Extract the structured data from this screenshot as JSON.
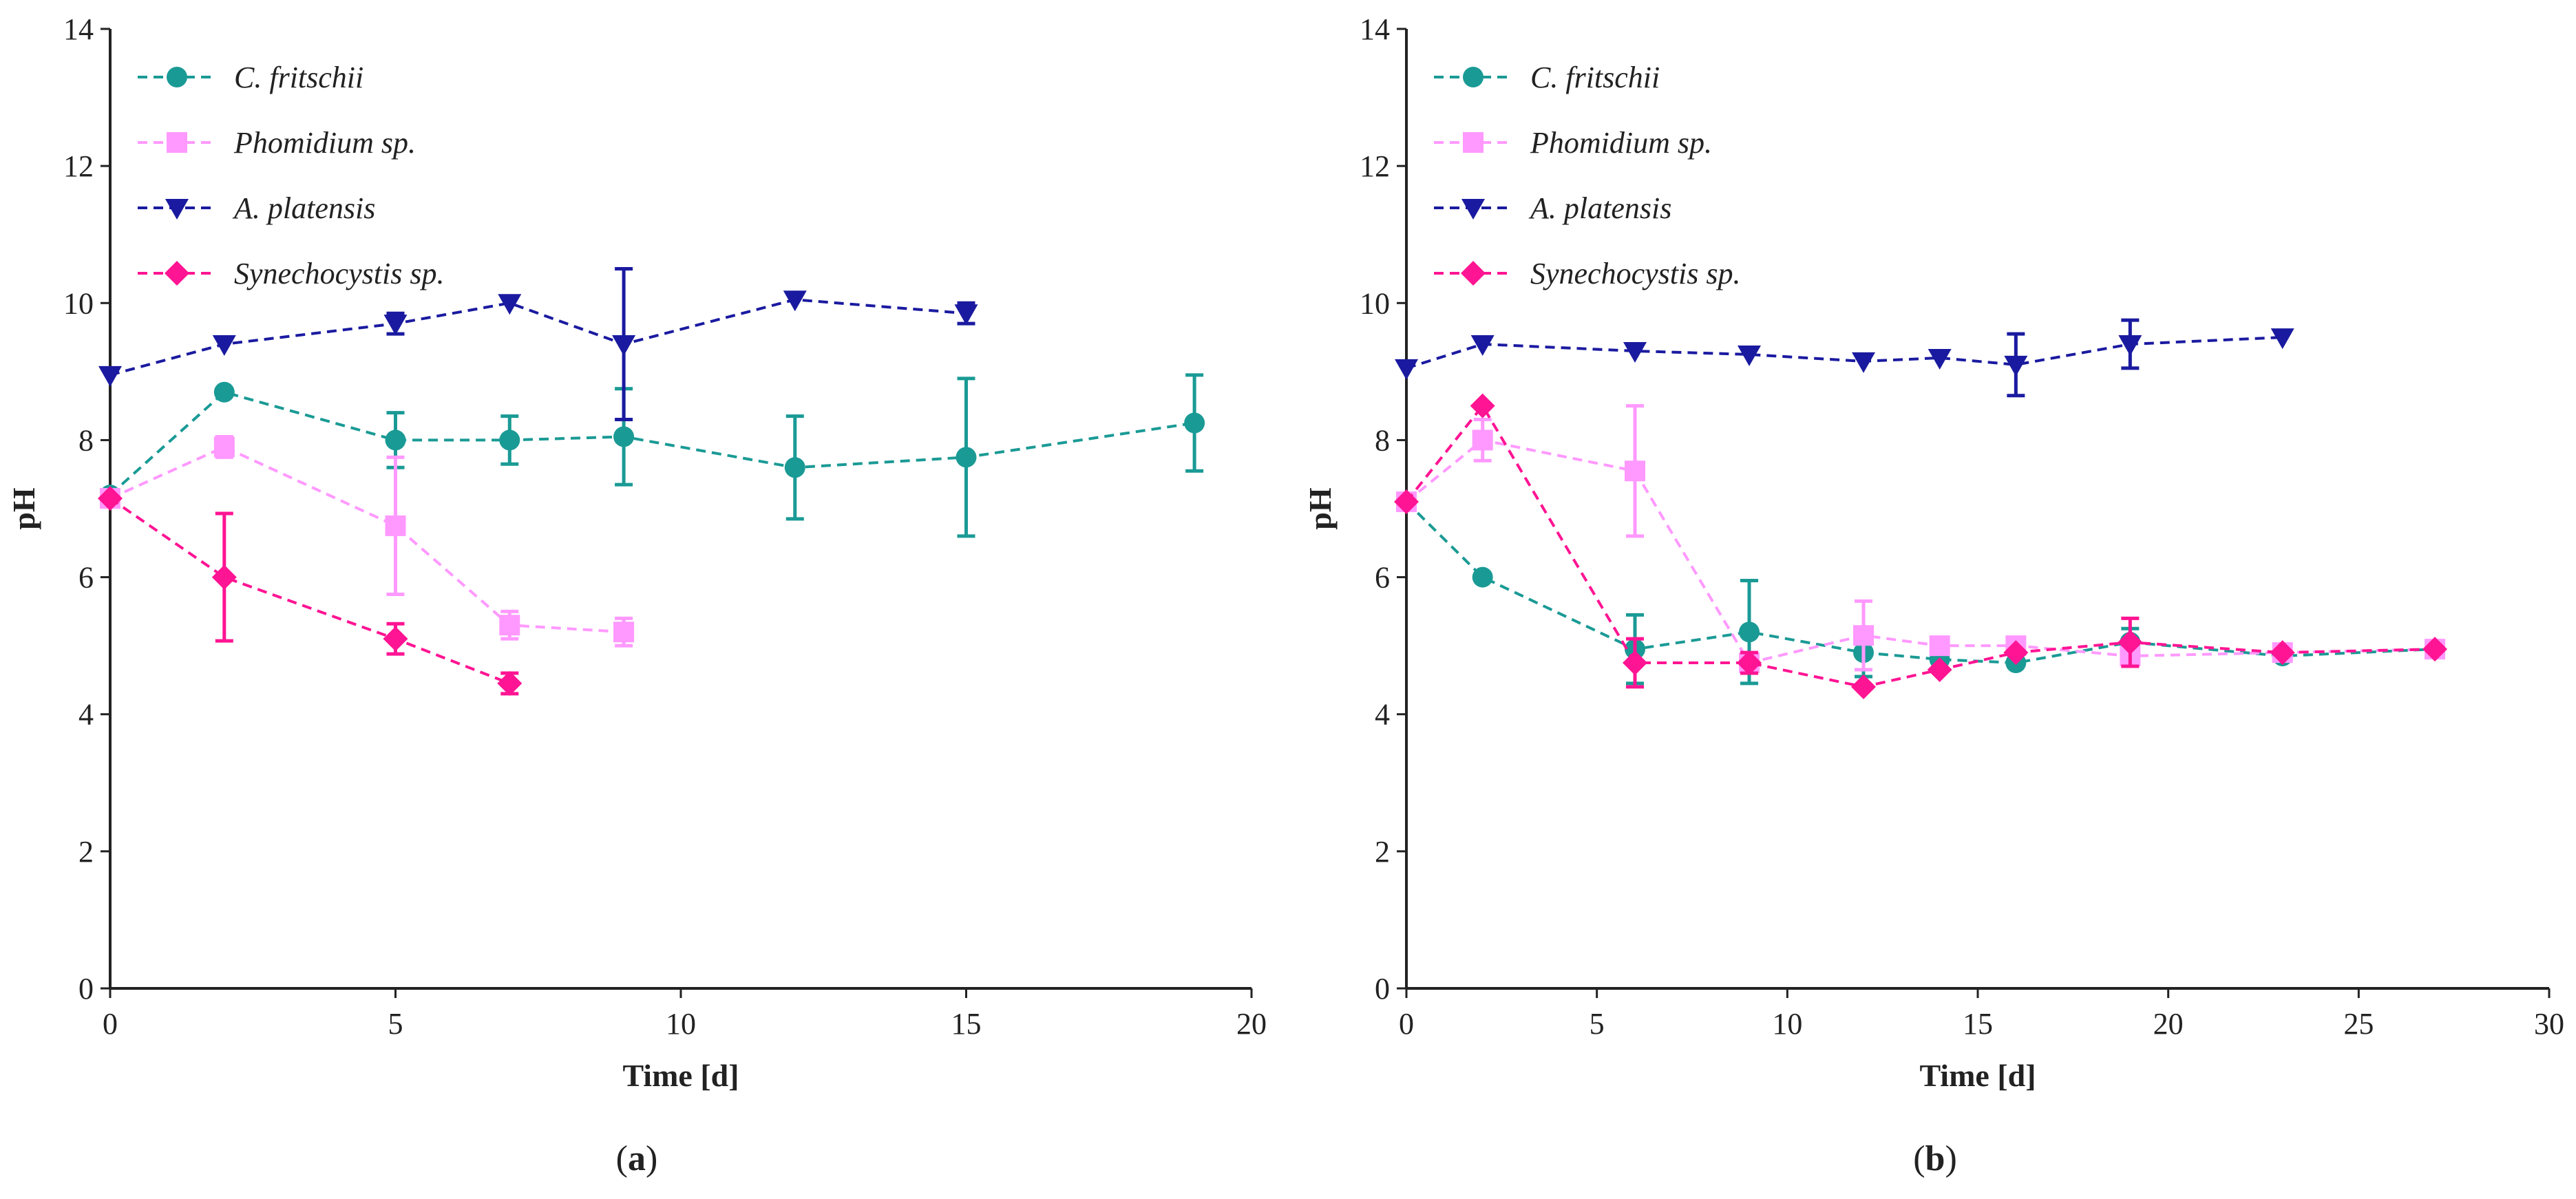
{
  "chart_data": [
    {
      "type": "line",
      "panel": "a",
      "caption_open": "(",
      "caption_letter": "a",
      "caption_close": ")",
      "xlabel": "Time [d]",
      "ylabel": "pH",
      "xlim": [
        0,
        20
      ],
      "ylim": [
        0,
        14
      ],
      "xticks": [
        0,
        5,
        10,
        15,
        20
      ],
      "yticks": [
        0,
        2,
        4,
        6,
        8,
        10,
        12,
        14
      ],
      "legend_position": "top-left",
      "series": [
        {
          "name": "C. fritschii",
          "color": "#1a9a95",
          "marker": "circle",
          "x": [
            0,
            2,
            5,
            7,
            9,
            12,
            15,
            19
          ],
          "y": [
            7.2,
            8.7,
            8.0,
            8.0,
            8.05,
            7.6,
            7.75,
            8.25
          ],
          "err": [
            0,
            0,
            0.4,
            0.35,
            0.7,
            0.75,
            1.15,
            0.7
          ]
        },
        {
          "name": "Phomidium sp.",
          "color": "#ff99ff",
          "marker": "square",
          "x": [
            0,
            2,
            5,
            7,
            9
          ],
          "y": [
            7.15,
            7.9,
            6.75,
            5.3,
            5.2
          ],
          "err": [
            0,
            0.15,
            1.0,
            0.2,
            0.2
          ]
        },
        {
          "name": "A. platensis",
          "color": "#1a1aa0",
          "marker": "triangle-down",
          "x": [
            0,
            2,
            5,
            7,
            9,
            12,
            15
          ],
          "y": [
            8.95,
            9.4,
            9.7,
            10.0,
            9.4,
            10.05,
            9.85
          ],
          "err": [
            0,
            0,
            0.15,
            0,
            1.1,
            0,
            0.15
          ]
        },
        {
          "name": "Synechocystis sp.",
          "color": "#ff1493",
          "marker": "diamond",
          "x": [
            0,
            2,
            5,
            7
          ],
          "y": [
            7.15,
            6.0,
            5.1,
            4.45
          ],
          "err": [
            0,
            0.93,
            0.22,
            0.15
          ]
        }
      ]
    },
    {
      "type": "line",
      "panel": "b",
      "caption_open": "(",
      "caption_letter": "b",
      "caption_close": ")",
      "xlabel": "Time [d]",
      "ylabel": "pH",
      "xlim": [
        0,
        30
      ],
      "ylim": [
        0,
        14
      ],
      "xticks": [
        0,
        5,
        10,
        15,
        20,
        25,
        30
      ],
      "yticks": [
        0,
        2,
        4,
        6,
        8,
        10,
        12,
        14
      ],
      "legend_position": "top-left",
      "series": [
        {
          "name": "C. fritschii",
          "color": "#1a9a95",
          "marker": "circle",
          "x": [
            0,
            2,
            6,
            9,
            12,
            14,
            16,
            19,
            23,
            27
          ],
          "y": [
            7.1,
            6.0,
            4.95,
            5.2,
            4.9,
            4.8,
            4.75,
            5.05,
            4.85,
            4.95
          ],
          "err": [
            0,
            0,
            0.5,
            0.75,
            0.35,
            0,
            0,
            0.2,
            0,
            0
          ]
        },
        {
          "name": "Phomidium sp.",
          "color": "#ff99ff",
          "marker": "square",
          "x": [
            0,
            2,
            6,
            9,
            12,
            14,
            16,
            19,
            23,
            27
          ],
          "y": [
            7.1,
            8.0,
            7.55,
            4.75,
            5.15,
            5.0,
            5.0,
            4.85,
            4.9,
            4.95
          ],
          "err": [
            0,
            0.3,
            0.95,
            0,
            0.5,
            0,
            0.1,
            0.15,
            0,
            0
          ]
        },
        {
          "name": "A. platensis",
          "color": "#1a1aa0",
          "marker": "triangle-down",
          "x": [
            0,
            2,
            6,
            9,
            12,
            14,
            16,
            19,
            23
          ],
          "y": [
            9.05,
            9.4,
            9.3,
            9.25,
            9.15,
            9.2,
            9.1,
            9.4,
            9.5
          ],
          "err": [
            0,
            0,
            0,
            0,
            0,
            0,
            0.45,
            0.35,
            0
          ]
        },
        {
          "name": "Synechocystis sp.",
          "color": "#ff1493",
          "marker": "diamond",
          "x": [
            0,
            2,
            6,
            9,
            12,
            14,
            16,
            19,
            23,
            27
          ],
          "y": [
            7.1,
            8.5,
            4.75,
            4.75,
            4.4,
            4.65,
            4.9,
            5.05,
            4.9,
            4.95
          ],
          "err": [
            0,
            0,
            0.35,
            0.15,
            0,
            0,
            0,
            0.35,
            0,
            0
          ]
        }
      ]
    }
  ]
}
